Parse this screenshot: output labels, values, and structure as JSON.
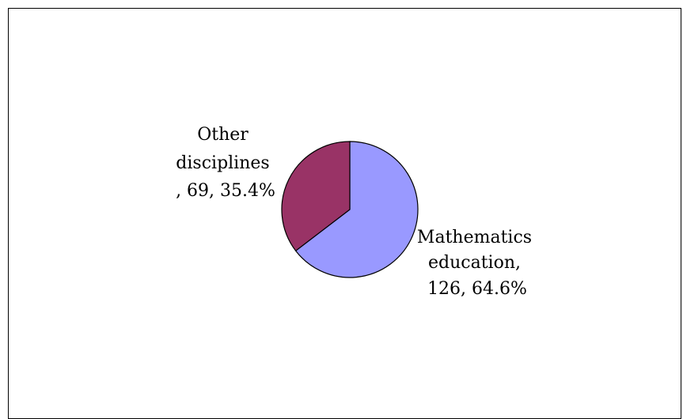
{
  "chart_data": {
    "type": "pie",
    "title": "",
    "categories": [
      "Mathematics education",
      "Other disciplines"
    ],
    "values": [
      126,
      69
    ],
    "percentages": [
      "64.6%",
      "35.4%"
    ],
    "colors": [
      "#9999FF",
      "#993366"
    ],
    "labels": [
      {
        "lines": [
          "Mathematics",
          "education,",
          "126, 64.6%"
        ]
      },
      {
        "lines": [
          "Other",
          "disciplines",
          ", 69, 35.4%"
        ]
      }
    ],
    "legend": "none"
  }
}
